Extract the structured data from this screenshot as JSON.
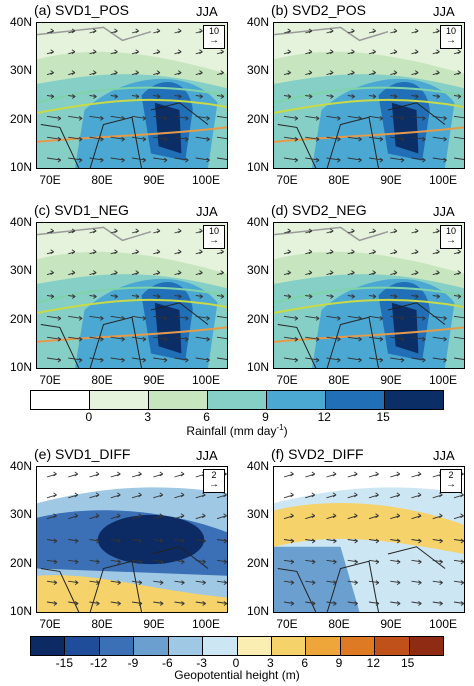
{
  "season": "JJA",
  "axes": {
    "y_ticks": [
      "40N",
      "30N",
      "20N",
      "10N"
    ],
    "x_ticks": [
      "70E",
      "80E",
      "90E",
      "100E"
    ]
  },
  "panels": [
    {
      "id": "a",
      "title": "(a) SVD1_POS",
      "ref_vector": "10",
      "field": "rainfall"
    },
    {
      "id": "b",
      "title": "(b) SVD2_POS",
      "ref_vector": "10",
      "field": "rainfall"
    },
    {
      "id": "c",
      "title": "(c) SVD1_NEG",
      "ref_vector": "10",
      "field": "rainfall"
    },
    {
      "id": "d",
      "title": "(d) SVD2_NEG",
      "ref_vector": "10",
      "field": "rainfall"
    },
    {
      "id": "e",
      "title": "(e) SVD1_DIFF",
      "ref_vector": "2",
      "field": "height"
    },
    {
      "id": "f",
      "title": "(f) SVD2_DIFF",
      "ref_vector": "2",
      "field": "height"
    }
  ],
  "rain_colorbar": {
    "title": "Rainfall (mm day",
    "title_exp": "-1",
    "title_close": ")",
    "ticks": [
      "0",
      "3",
      "6",
      "9",
      "12",
      "15"
    ],
    "colors": [
      "#ffffff",
      "#e5f3dc",
      "#c7e6c0",
      "#86cfc6",
      "#4aa8d2",
      "#2170b7",
      "#0b2e66"
    ]
  },
  "height_colorbar": {
    "title": "Geopotential height (m)",
    "ticks": [
      "-15",
      "-12",
      "-9",
      "-6",
      "-3",
      "0",
      "3",
      "6",
      "9",
      "12",
      "15"
    ],
    "colors": [
      "#0c2a63",
      "#1f4d9a",
      "#3b6fb6",
      "#6b9fd0",
      "#9ec8e4",
      "#cde6f3",
      "#fbeeb2",
      "#f6d26a",
      "#eea63a",
      "#de7a23",
      "#c1511a",
      "#8f2b12"
    ]
  }
}
